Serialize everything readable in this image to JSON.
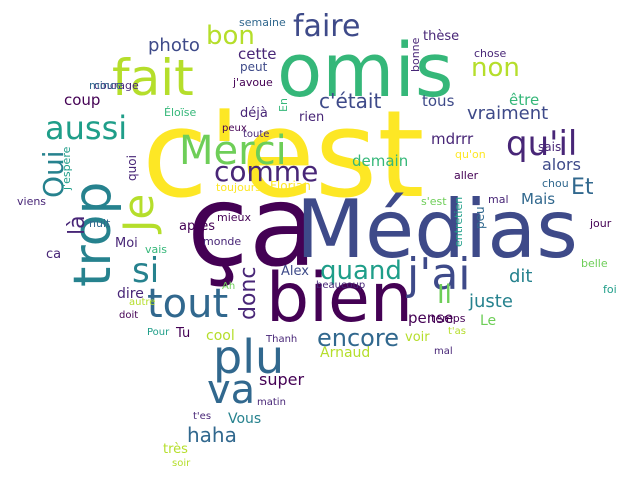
{
  "palette": {
    "indigo": "#440154",
    "purple": "#482677",
    "navy": "#3e4a89",
    "blue": "#31688e",
    "teal": "#26828e",
    "cyan": "#1f9e89",
    "green": "#35b779",
    "lime": "#6ece58",
    "yellow": "#fde725",
    "olive": "#b5de2b"
  },
  "words": [
    {
      "t": "c'est",
      "c": "yellow",
      "r": 0
    },
    {
      "t": "ça",
      "c": "indigo",
      "r": 0
    },
    {
      "t": "Médias",
      "c": "navy",
      "r": 0
    },
    {
      "t": "omis",
      "c": "green",
      "r": 0
    },
    {
      "t": "bien",
      "c": "indigo",
      "r": 0
    },
    {
      "t": "trop",
      "c": "teal",
      "r": -90
    },
    {
      "t": "fait",
      "c": "olive",
      "r": 0
    },
    {
      "t": "Merci",
      "c": "lime",
      "r": 0
    },
    {
      "t": "Je",
      "c": "olive",
      "r": -90
    },
    {
      "t": "plu",
      "c": "blue",
      "r": 0
    },
    {
      "t": "tout",
      "c": "blue",
      "r": 0
    },
    {
      "t": "j'ai",
      "c": "navy",
      "r": 0
    },
    {
      "t": "qu'il",
      "c": "purple",
      "r": 0
    },
    {
      "t": "faire",
      "c": "navy",
      "r": 0
    },
    {
      "t": "va",
      "c": "blue",
      "r": 0
    },
    {
      "t": "si",
      "c": "teal",
      "r": 0
    },
    {
      "t": "aussi",
      "c": "cyan",
      "r": 0
    },
    {
      "t": "comme",
      "c": "purple",
      "r": 0
    },
    {
      "t": "quand",
      "c": "cyan",
      "r": 0
    },
    {
      "t": "Oui",
      "c": "teal",
      "r": -90
    },
    {
      "t": "non",
      "c": "olive",
      "r": 0
    },
    {
      "t": "encore",
      "c": "blue",
      "r": 0
    },
    {
      "t": "bon",
      "c": "olive",
      "r": 0
    },
    {
      "t": "donc",
      "c": "purple",
      "r": -90
    },
    {
      "t": "c'était",
      "c": "navy",
      "r": 0
    },
    {
      "t": "là",
      "c": "purple",
      "r": -90
    },
    {
      "t": "Il",
      "c": "lime",
      "r": 0
    },
    {
      "t": "Et",
      "c": "blue",
      "r": 0
    },
    {
      "t": "haha",
      "c": "blue",
      "r": 0
    },
    {
      "t": "photo",
      "c": "navy",
      "r": 0
    },
    {
      "t": "vraiment",
      "c": "navy",
      "r": 0
    },
    {
      "t": "cette",
      "c": "purple",
      "r": 0
    },
    {
      "t": "alors",
      "c": "navy",
      "r": 0
    },
    {
      "t": "tous",
      "c": "navy",
      "r": 0
    },
    {
      "t": "super",
      "c": "indigo",
      "r": 0
    },
    {
      "t": "dit",
      "c": "teal",
      "r": 0
    },
    {
      "t": "coup",
      "c": "indigo",
      "r": 0
    },
    {
      "t": "juste",
      "c": "teal",
      "r": 0
    },
    {
      "t": "mdrrr",
      "c": "purple",
      "r": 0
    },
    {
      "t": "demain",
      "c": "green",
      "r": 0
    },
    {
      "t": "Arnaud",
      "c": "olive",
      "r": 0
    },
    {
      "t": "pense",
      "c": "indigo",
      "r": 0
    },
    {
      "t": "être",
      "c": "green",
      "r": 0
    },
    {
      "t": "cool",
      "c": "olive",
      "r": 0
    },
    {
      "t": "Mais",
      "c": "blue",
      "r": 0
    },
    {
      "t": "après",
      "c": "indigo",
      "r": 0
    },
    {
      "t": "dire",
      "c": "purple",
      "r": 0
    },
    {
      "t": "Vous",
      "c": "teal",
      "r": 0
    },
    {
      "t": "Le",
      "c": "lime",
      "r": 0
    },
    {
      "t": "rien",
      "c": "purple",
      "r": 0
    },
    {
      "t": "déjà",
      "c": "purple",
      "r": 0
    },
    {
      "t": "voir",
      "c": "olive",
      "r": 0
    },
    {
      "t": "Alex",
      "c": "navy",
      "r": 0
    },
    {
      "t": "très",
      "c": "olive",
      "r": 0
    },
    {
      "t": "Moi",
      "c": "purple",
      "r": 0
    },
    {
      "t": "thèse",
      "c": "purple",
      "r": 0
    },
    {
      "t": "ca",
      "c": "purple",
      "r": 0
    },
    {
      "t": "Tu",
      "c": "indigo",
      "r": 0
    },
    {
      "t": "peut",
      "c": "navy",
      "r": 0
    },
    {
      "t": "sais",
      "c": "purple",
      "r": 0
    },
    {
      "t": "peu",
      "c": "blue",
      "r": -90
    },
    {
      "t": "quoi",
      "c": "purple",
      "r": -90
    },
    {
      "t": "Florian",
      "c": "yellow",
      "r": 0
    },
    {
      "t": "semaine",
      "c": "blue",
      "r": 0
    },
    {
      "t": "bonne",
      "c": "purple",
      "r": -90
    },
    {
      "t": "chose",
      "c": "purple",
      "r": 0
    },
    {
      "t": "j'avoue",
      "c": "indigo",
      "r": 0
    },
    {
      "t": "courage",
      "c": "purple",
      "r": 0
    },
    {
      "t": "mince",
      "c": "blue",
      "r": 0
    },
    {
      "t": "Éloïse",
      "c": "green",
      "r": 0
    },
    {
      "t": "En",
      "c": "green",
      "r": -90
    },
    {
      "t": "peux",
      "c": "indigo",
      "r": 0
    },
    {
      "t": "toute",
      "c": "purple",
      "r": 0
    },
    {
      "t": "qu'on",
      "c": "yellow",
      "r": 0
    },
    {
      "t": "chou",
      "c": "blue",
      "r": 0
    },
    {
      "t": "aller",
      "c": "indigo",
      "r": 0
    },
    {
      "t": "toujours",
      "c": "yellow",
      "r": 0
    },
    {
      "t": "j'espère",
      "c": "cyan",
      "r": -90
    },
    {
      "t": "viens",
      "c": "purple",
      "r": 0
    },
    {
      "t": "nuit",
      "c": "blue",
      "r": 0
    },
    {
      "t": "vais",
      "c": "green",
      "r": 0
    },
    {
      "t": "monde",
      "c": "purple",
      "r": 0
    },
    {
      "t": "mieux",
      "c": "indigo",
      "r": 0
    },
    {
      "t": "s'est",
      "c": "lime",
      "r": 0
    },
    {
      "t": "mal",
      "c": "purple",
      "r": 0
    },
    {
      "t": "entretien",
      "c": "cyan",
      "r": -90
    },
    {
      "t": "jour",
      "c": "indigo",
      "r": 0
    },
    {
      "t": "belle",
      "c": "lime",
      "r": 0
    },
    {
      "t": "foi",
      "c": "cyan",
      "r": 0
    },
    {
      "t": "Ah",
      "c": "lime",
      "r": 0
    },
    {
      "t": "beaucoup",
      "c": "purple",
      "r": 0
    },
    {
      "t": "autre",
      "c": "olive",
      "r": 0
    },
    {
      "t": "doit",
      "c": "indigo",
      "r": 0
    },
    {
      "t": "Pour",
      "c": "cyan",
      "r": 0
    },
    {
      "t": "temps",
      "c": "indigo",
      "r": 0
    },
    {
      "t": "t'as",
      "c": "olive",
      "r": 0
    },
    {
      "t": "Thanh",
      "c": "purple",
      "r": 0
    },
    {
      "t": "mal",
      "c": "purple",
      "r": 0
    },
    {
      "t": "matin",
      "c": "purple",
      "r": 0
    },
    {
      "t": "t'es",
      "c": "purple",
      "r": 0
    },
    {
      "t": "soir",
      "c": "olive",
      "r": 0
    }
  ]
}
